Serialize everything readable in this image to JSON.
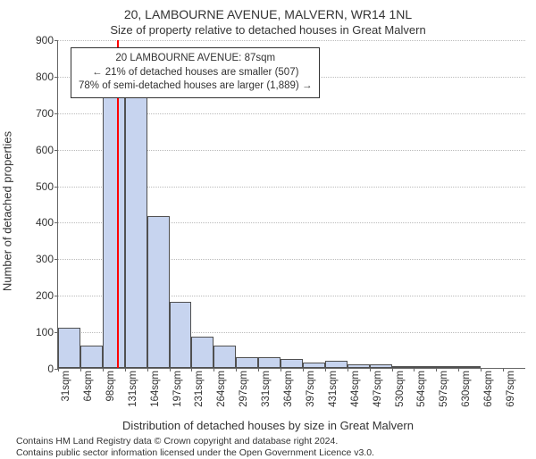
{
  "chart": {
    "type": "histogram",
    "title_main": "20, LAMBOURNE AVENUE, MALVERN, WR14 1NL",
    "title_sub": "Size of property relative to detached houses in Great Malvern",
    "xlabel": "Distribution of detached houses by size in Great Malvern",
    "ylabel": "Number of detached properties",
    "ylim": [
      0,
      900
    ],
    "ytick_step": 100,
    "yticks": [
      0,
      100,
      200,
      300,
      400,
      500,
      600,
      700,
      800,
      900
    ],
    "xticks": [
      "31sqm",
      "64sqm",
      "98sqm",
      "131sqm",
      "164sqm",
      "197sqm",
      "231sqm",
      "264sqm",
      "297sqm",
      "331sqm",
      "364sqm",
      "397sqm",
      "431sqm",
      "464sqm",
      "497sqm",
      "530sqm",
      "564sqm",
      "597sqm",
      "630sqm",
      "664sqm",
      "697sqm"
    ],
    "bars": [
      {
        "pos": 0,
        "value": 110
      },
      {
        "pos": 1,
        "value": 60
      },
      {
        "pos": 2,
        "value": 745
      },
      {
        "pos": 3,
        "value": 745
      },
      {
        "pos": 4,
        "value": 415
      },
      {
        "pos": 5,
        "value": 180
      },
      {
        "pos": 6,
        "value": 85
      },
      {
        "pos": 7,
        "value": 60
      },
      {
        "pos": 8,
        "value": 30
      },
      {
        "pos": 9,
        "value": 30
      },
      {
        "pos": 10,
        "value": 25
      },
      {
        "pos": 11,
        "value": 15
      },
      {
        "pos": 12,
        "value": 20
      },
      {
        "pos": 13,
        "value": 10
      },
      {
        "pos": 14,
        "value": 10
      },
      {
        "pos": 15,
        "value": 3
      },
      {
        "pos": 16,
        "value": 4
      },
      {
        "pos": 17,
        "value": 3
      },
      {
        "pos": 18,
        "value": 3
      },
      {
        "pos": 19,
        "value": 0
      },
      {
        "pos": 20,
        "value": 0
      }
    ],
    "bar_fill": "#c7d4ef",
    "bar_stroke": "#505050",
    "grid_color": "#bbbbbb",
    "axis_color": "#666666",
    "marker": {
      "bin_position": 2.65,
      "color": "#ff0000",
      "width": 2
    },
    "annotation": {
      "line1": "20 LAMBOURNE AVENUE: 87sqm",
      "line2": "← 21% of detached houses are smaller (507)",
      "line3": "78% of semi-detached houses are larger (1,889) →"
    },
    "title_fontsize": 14,
    "subtitle_fontsize": 13,
    "label_fontsize": 13,
    "tick_fontsize": 12,
    "anno_fontsize": 11.5
  },
  "footer": {
    "line1": "Contains HM Land Registry data © Crown copyright and database right 2024.",
    "line2": "Contains public sector information licensed under the Open Government Licence v3.0."
  }
}
